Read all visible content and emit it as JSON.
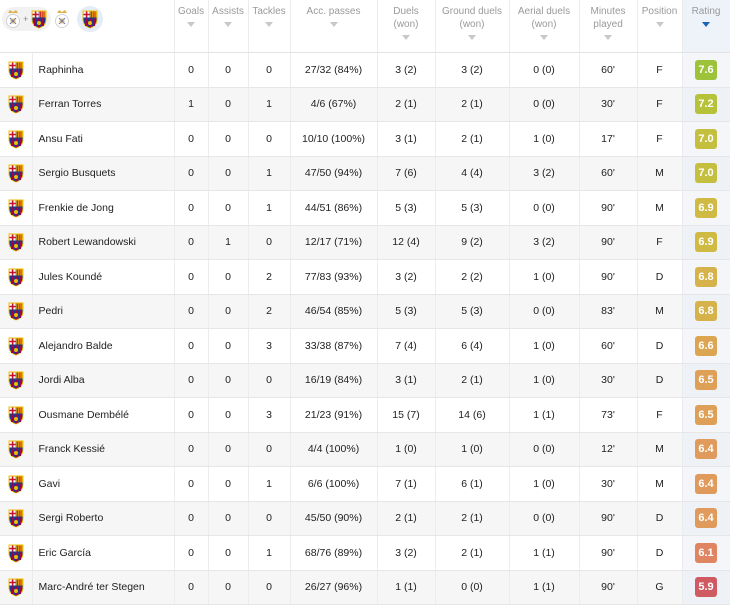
{
  "colors": {
    "fcb_blue": "#1d3a8a",
    "fcb_red": "#a50044",
    "fcb_gold": "#edbb00",
    "sort_accent": "#1b63b5"
  },
  "header": {
    "columns": [
      {
        "key": "goals",
        "label": "Goals"
      },
      {
        "key": "assists",
        "label": "Assists"
      },
      {
        "key": "tackles",
        "label": "Tackles"
      },
      {
        "key": "acc_passes",
        "label": "Acc. passes"
      },
      {
        "key": "duels",
        "label": "Duels\n(won)"
      },
      {
        "key": "ground_duels",
        "label": "Ground duels\n(won)"
      },
      {
        "key": "aerial_duels",
        "label": "Aerial duels\n(won)"
      },
      {
        "key": "minutes",
        "label": "Minutes\nplayed"
      },
      {
        "key": "position",
        "label": "Position"
      },
      {
        "key": "rating",
        "label": "Rating",
        "sorted": true
      }
    ],
    "team_filter": {
      "icons": [
        "real-madrid-crest-icon",
        "barcelona-crest-icon"
      ],
      "plus": "+",
      "active": "barcelona-crest-icon"
    }
  },
  "players": [
    {
      "name": "Raphinha",
      "goals": "0",
      "assists": "0",
      "tackles": "0",
      "acc_passes": "27/32 (84%)",
      "duels": "3 (2)",
      "ground_duels": "3 (2)",
      "aerial_duels": "0 (0)",
      "minutes": "60'",
      "position": "F",
      "rating": "7.6",
      "rating_color": "#9cc33a"
    },
    {
      "name": "Ferran Torres",
      "goals": "1",
      "assists": "0",
      "tackles": "1",
      "acc_passes": "4/6 (67%)",
      "duels": "2 (1)",
      "ground_duels": "2 (1)",
      "aerial_duels": "0 (0)",
      "minutes": "30'",
      "position": "F",
      "rating": "7.2",
      "rating_color": "#b5c23a"
    },
    {
      "name": "Ansu Fati",
      "goals": "0",
      "assists": "0",
      "tackles": "0",
      "acc_passes": "10/10 (100%)",
      "duels": "3 (1)",
      "ground_duels": "2 (1)",
      "aerial_duels": "1 (0)",
      "minutes": "17'",
      "position": "F",
      "rating": "7.0",
      "rating_color": "#c4bf3e"
    },
    {
      "name": "Sergio Busquets",
      "goals": "0",
      "assists": "0",
      "tackles": "1",
      "acc_passes": "47/50 (94%)",
      "duels": "7 (6)",
      "ground_duels": "4 (4)",
      "aerial_duels": "3 (2)",
      "minutes": "60'",
      "position": "M",
      "rating": "7.0",
      "rating_color": "#c4bf3e"
    },
    {
      "name": "Frenkie de Jong",
      "goals": "0",
      "assists": "0",
      "tackles": "1",
      "acc_passes": "44/51 (86%)",
      "duels": "5 (3)",
      "ground_duels": "5 (3)",
      "aerial_duels": "0 (0)",
      "minutes": "90'",
      "position": "M",
      "rating": "6.9",
      "rating_color": "#cfba44"
    },
    {
      "name": "Robert Lewandowski",
      "goals": "0",
      "assists": "1",
      "tackles": "0",
      "acc_passes": "12/17 (71%)",
      "duels": "12 (4)",
      "ground_duels": "9 (2)",
      "aerial_duels": "3 (2)",
      "minutes": "90'",
      "position": "F",
      "rating": "6.9",
      "rating_color": "#cfba44"
    },
    {
      "name": "Jules Koundé",
      "goals": "0",
      "assists": "0",
      "tackles": "2",
      "acc_passes": "77/83 (93%)",
      "duels": "3 (2)",
      "ground_duels": "2 (2)",
      "aerial_duels": "1 (0)",
      "minutes": "90'",
      "position": "D",
      "rating": "6.8",
      "rating_color": "#d6b24a"
    },
    {
      "name": "Pedri",
      "goals": "0",
      "assists": "0",
      "tackles": "2",
      "acc_passes": "46/54 (85%)",
      "duels": "5 (3)",
      "ground_duels": "5 (3)",
      "aerial_duels": "0 (0)",
      "minutes": "83'",
      "position": "M",
      "rating": "6.8",
      "rating_color": "#d6b24a"
    },
    {
      "name": "Alejandro Balde",
      "goals": "0",
      "assists": "0",
      "tackles": "3",
      "acc_passes": "33/38 (87%)",
      "duels": "7 (4)",
      "ground_duels": "6 (4)",
      "aerial_duels": "1 (0)",
      "minutes": "60'",
      "position": "D",
      "rating": "6.6",
      "rating_color": "#dca552"
    },
    {
      "name": "Jordi Alba",
      "goals": "0",
      "assists": "0",
      "tackles": "0",
      "acc_passes": "16/19 (84%)",
      "duels": "3 (1)",
      "ground_duels": "2 (1)",
      "aerial_duels": "1 (0)",
      "minutes": "30'",
      "position": "D",
      "rating": "6.5",
      "rating_color": "#dea056"
    },
    {
      "name": "Ousmane Dembélé",
      "goals": "0",
      "assists": "0",
      "tackles": "3",
      "acc_passes": "21/23 (91%)",
      "duels": "15 (7)",
      "ground_duels": "14 (6)",
      "aerial_duels": "1 (1)",
      "minutes": "73'",
      "position": "F",
      "rating": "6.5",
      "rating_color": "#dea056"
    },
    {
      "name": "Franck Kessié",
      "goals": "0",
      "assists": "0",
      "tackles": "0",
      "acc_passes": "4/4 (100%)",
      "duels": "1 (0)",
      "ground_duels": "1 (0)",
      "aerial_duels": "0 (0)",
      "minutes": "12'",
      "position": "M",
      "rating": "6.4",
      "rating_color": "#df9a5c"
    },
    {
      "name": "Gavi",
      "goals": "0",
      "assists": "0",
      "tackles": "1",
      "acc_passes": "6/6 (100%)",
      "duels": "7 (1)",
      "ground_duels": "6 (1)",
      "aerial_duels": "1 (0)",
      "minutes": "30'",
      "position": "M",
      "rating": "6.4",
      "rating_color": "#df9a5c"
    },
    {
      "name": "Sergi Roberto",
      "goals": "0",
      "assists": "0",
      "tackles": "0",
      "acc_passes": "45/50 (90%)",
      "duels": "2 (1)",
      "ground_duels": "2 (1)",
      "aerial_duels": "0 (0)",
      "minutes": "90'",
      "position": "D",
      "rating": "6.4",
      "rating_color": "#df9a5c"
    },
    {
      "name": "Eric García",
      "goals": "0",
      "assists": "0",
      "tackles": "1",
      "acc_passes": "68/76 (89%)",
      "duels": "3 (2)",
      "ground_duels": "2 (1)",
      "aerial_duels": "1 (1)",
      "minutes": "90'",
      "position": "D",
      "rating": "6.1",
      "rating_color": "#df8562"
    },
    {
      "name": "Marc-André ter Stegen",
      "goals": "0",
      "assists": "0",
      "tackles": "0",
      "acc_passes": "26/27 (96%)",
      "duels": "1 (1)",
      "ground_duels": "0 (0)",
      "aerial_duels": "1 (1)",
      "minutes": "90'",
      "position": "G",
      "rating": "5.9",
      "rating_color": "#cf5a62"
    }
  ]
}
